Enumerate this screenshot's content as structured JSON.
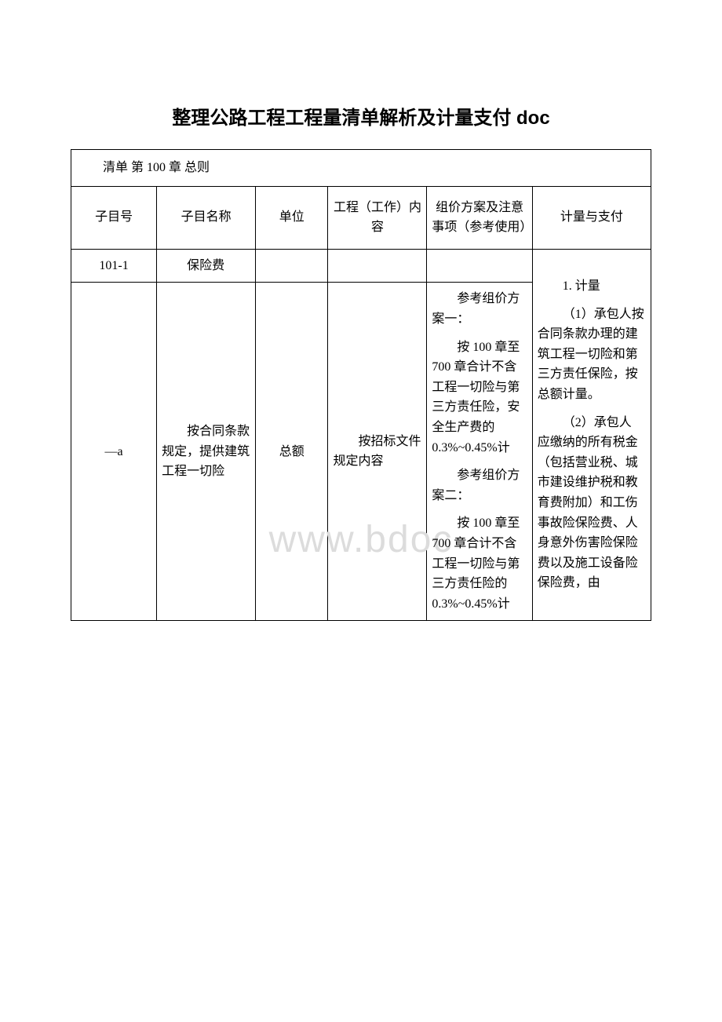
{
  "title": "整理公路工程工程量清单解析及计量支付 doc",
  "watermark": "www.bdoc",
  "table": {
    "chapter_title": "清单 第 100 章 总则",
    "headers": {
      "col1": "子目号",
      "col2": "子目名称",
      "col3": "单位",
      "col4": "工程（工作）内容",
      "col5": "组价方案及注意事项（参考使用）",
      "col6": "计量与支付"
    },
    "rows": {
      "r1": {
        "code": "101-1",
        "name": "保险费",
        "unit": "",
        "content": "",
        "plan": "",
        "payment": "1. 计量"
      },
      "r2": {
        "code": "—a",
        "name": "按合同条款规定，提供建筑工程一切险",
        "unit": "总额",
        "content": "按招标文件规定内容",
        "plan_p1_title": "参考组价方案一：",
        "plan_p1_body": "按 100 章至 700 章合计不含工程一切险与第三方责任险，安全生产费的 0.3%~0.45%计",
        "plan_p2_title": "参考组价方案二：",
        "plan_p2_body": "按 100 章至 700 章合计不含工程一切险与第三方责任险的 0.3%~0.45%计",
        "payment_p1": "（1）承包人按合同条款办理的建筑工程一切险和第三方责任保险，按总额计量。",
        "payment_p2": "（2）承包人 应缴纳的所有税金（包括营业税、城市建设维护税和教育费附加）和工伤事故险保险费、人身意外伤害险保险费以及施工设备险保险费，由"
      }
    }
  },
  "styles": {
    "title_fontsize": 24,
    "body_fontsize": 16,
    "border_color": "#000000",
    "background_color": "#ffffff",
    "watermark_color": "#dcdcdc"
  }
}
